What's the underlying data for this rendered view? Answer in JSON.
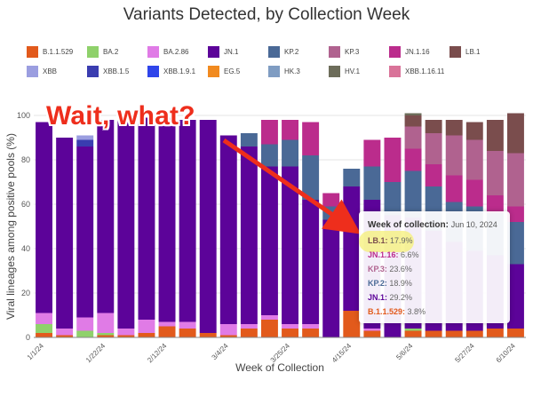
{
  "chart_data": {
    "type": "bar",
    "stacked": true,
    "title": "Variants Detected, by Collection Week",
    "xlabel": "Week of Collection",
    "ylabel": "Viral lineages among positive pools (%)",
    "ylim": [
      0,
      100
    ],
    "yticks": [
      "0",
      "20",
      "40",
      "60",
      "80",
      "100"
    ],
    "xticks": [
      {
        "label": "1/1/24",
        "index": 0
      },
      {
        "label": "1/22/24",
        "index": 3
      },
      {
        "label": "2/12/24",
        "index": 6
      },
      {
        "label": "3/4/24",
        "index": 9
      },
      {
        "label": "3/25/24",
        "index": 12
      },
      {
        "label": "4/15/24",
        "index": 15
      },
      {
        "label": "5/6/24",
        "index": 18
      },
      {
        "label": "5/27/24",
        "index": 21
      },
      {
        "label": "6/10/24",
        "index": 23
      }
    ],
    "categories": [
      "1/1/24",
      "1/8/24",
      "1/15/24",
      "1/22/24",
      "1/29/24",
      "2/5/24",
      "2/12/24",
      "2/19/24",
      "2/26/24",
      "3/4/24",
      "3/11/24",
      "3/18/24",
      "3/25/24",
      "4/1/24",
      "4/8/24",
      "4/15/24",
      "4/22/24",
      "4/29/24",
      "5/6/24",
      "5/13/24",
      "5/20/24",
      "5/27/24",
      "6/3/24",
      "6/10/24"
    ],
    "legend": [
      {
        "name": "B.1.1.529",
        "color": "#e25a1c"
      },
      {
        "name": "BA.2",
        "color": "#8fd16b"
      },
      {
        "name": "BA.2.86",
        "color": "#e07be6"
      },
      {
        "name": "JN.1",
        "color": "#5c0399"
      },
      {
        "name": "KP.2",
        "color": "#4a6996"
      },
      {
        "name": "KP.3",
        "color": "#b0628f"
      },
      {
        "name": "JN.1.16",
        "color": "#bb2c8c"
      },
      {
        "name": "LB.1",
        "color": "#7a4d4d"
      },
      {
        "name": "XBB",
        "color": "#9b9ee0"
      },
      {
        "name": "XBB.1.5",
        "color": "#3a3db0"
      },
      {
        "name": "XBB.1.9.1",
        "color": "#2f45ea"
      },
      {
        "name": "EG.5",
        "color": "#f18a1f"
      },
      {
        "name": "HK.3",
        "color": "#7f9cc2"
      },
      {
        "name": "HV.1",
        "color": "#6d6d5a"
      },
      {
        "name": "XBB.1.16.11",
        "color": "#d97399"
      }
    ],
    "series": [
      {
        "name": "B.1.1.529",
        "color": "#e25a1c",
        "values": [
          2,
          1,
          0,
          1,
          1,
          2,
          5,
          4,
          2,
          1,
          4,
          8,
          4,
          4,
          0,
          12,
          3,
          0,
          3,
          3,
          3,
          3,
          4,
          4
        ]
      },
      {
        "name": "BA.2",
        "color": "#8fd16b",
        "values": [
          4,
          0,
          3,
          1,
          0,
          0,
          0,
          0,
          0,
          0,
          0,
          0,
          0,
          0,
          0,
          0,
          0,
          0,
          1,
          0,
          0,
          0,
          0,
          0
        ]
      },
      {
        "name": "BA.2.86",
        "color": "#e07be6",
        "values": [
          5,
          3,
          6,
          9,
          3,
          6,
          2,
          3,
          0,
          5,
          2,
          2,
          2,
          2,
          0,
          0,
          1,
          0,
          0,
          0,
          0,
          0,
          0,
          0
        ]
      },
      {
        "name": "JN.1",
        "color": "#5c0399",
        "values": [
          86,
          86,
          77,
          87,
          94,
          91,
          92,
          91,
          96,
          85,
          80,
          67,
          71,
          56,
          53,
          56,
          58,
          55,
          50,
          45,
          40,
          36,
          33,
          29
        ]
      },
      {
        "name": "XBB.1.5",
        "color": "#3a3db0",
        "values": [
          0,
          0,
          3,
          0,
          0,
          0,
          0,
          0,
          0,
          0,
          0,
          0,
          0,
          0,
          0,
          0,
          0,
          0,
          0,
          0,
          0,
          0,
          0,
          0
        ]
      },
      {
        "name": "XBB",
        "color": "#9b9ee0",
        "values": [
          0,
          0,
          2,
          0,
          0,
          0,
          0,
          0,
          0,
          0,
          0,
          0,
          0,
          0,
          0,
          0,
          0,
          0,
          0,
          0,
          0,
          0,
          0,
          0
        ]
      },
      {
        "name": "KP.2",
        "color": "#4a6996",
        "values": [
          0,
          0,
          0,
          0,
          0,
          0,
          0,
          0,
          0,
          0,
          6,
          10,
          12,
          20,
          6,
          8,
          15,
          15,
          21,
          20,
          18,
          20,
          19,
          19
        ]
      },
      {
        "name": "JN.1.16",
        "color": "#bb2c8c",
        "values": [
          0,
          0,
          0,
          0,
          0,
          0,
          0,
          0,
          0,
          0,
          0,
          11,
          9,
          15,
          6,
          0,
          12,
          20,
          10,
          10,
          12,
          12,
          8,
          7
        ]
      },
      {
        "name": "KP.3",
        "color": "#b0628f",
        "values": [
          0,
          0,
          0,
          0,
          0,
          0,
          0,
          0,
          0,
          0,
          0,
          0,
          0,
          0,
          0,
          0,
          0,
          0,
          10,
          14,
          18,
          18,
          20,
          24
        ]
      },
      {
        "name": "LB.1",
        "color": "#7a4d4d",
        "values": [
          0,
          0,
          0,
          0,
          0,
          0,
          0,
          0,
          0,
          0,
          0,
          0,
          0,
          0,
          0,
          0,
          0,
          0,
          5,
          6,
          7,
          8,
          14,
          18
        ]
      },
      {
        "name": "HV.1",
        "color": "#6d6d5a",
        "values": [
          0,
          0,
          0,
          0,
          0,
          0,
          0,
          0,
          0,
          0,
          0,
          0,
          0,
          0,
          0,
          0,
          0,
          0,
          1,
          0,
          0,
          0,
          0,
          0
        ]
      },
      {
        "name": "XBB.1.16.11",
        "color": "#d97399",
        "values": [
          0,
          0,
          0,
          0,
          0,
          0,
          0,
          0,
          0,
          0,
          0,
          0,
          0,
          0,
          0,
          0,
          0,
          0,
          0,
          0,
          0,
          0,
          0,
          0
        ]
      }
    ],
    "tooltip": {
      "header_label": "Week of collection:",
      "header_date": "Jun 10, 2024",
      "rows": [
        {
          "name": "LB.1:",
          "value": "17.9%",
          "color": "#7a4d4d"
        },
        {
          "name": "JN.1.16:",
          "value": "6.6%",
          "color": "#bb2c8c"
        },
        {
          "name": "KP.3:",
          "value": "23.6%",
          "color": "#b0628f"
        },
        {
          "name": "KP.2:",
          "value": "18.9%",
          "color": "#4a6996"
        },
        {
          "name": "JN.1:",
          "value": "29.2%",
          "color": "#5c0399"
        },
        {
          "name": "B.1.1.529:",
          "value": "3.8%",
          "color": "#e25a1c"
        }
      ]
    },
    "annotation": {
      "text": "Wait, what?",
      "color": "#ee2e1c"
    },
    "grid": true,
    "legend_position": "top"
  }
}
